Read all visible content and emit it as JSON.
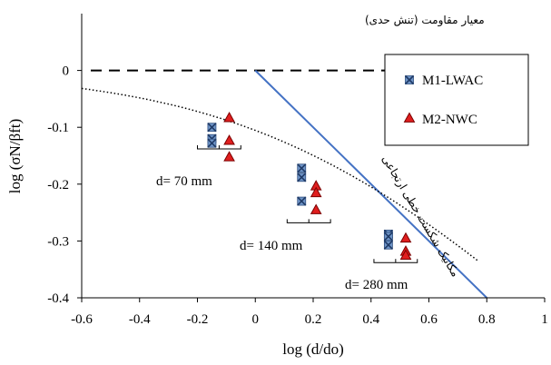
{
  "chart_data": {
    "type": "scatter",
    "xlabel": "log (d/do)",
    "ylabel": "log (σN/βft)",
    "xlim": [
      -0.6,
      1.0
    ],
    "ylim": [
      -0.4,
      0.1
    ],
    "xticks": [
      "-0.6",
      "-0.4",
      "-0.2",
      "0",
      "0.2",
      "0.4",
      "0.6",
      "0.8",
      "1"
    ],
    "yticks": [
      "0",
      "-0.1",
      "-0.2",
      "-0.3",
      "-0.4"
    ],
    "grid": false,
    "legend_position": "top-right",
    "series": [
      {
        "name": "M1-LWAC",
        "marker": "x-square",
        "color": "#3f6fa8",
        "points": [
          [
            -0.15,
            -0.1
          ],
          [
            -0.15,
            -0.12
          ],
          [
            -0.15,
            -0.128
          ],
          [
            0.16,
            -0.172
          ],
          [
            0.16,
            -0.188
          ],
          [
            0.16,
            -0.23
          ],
          [
            0.46,
            -0.288
          ],
          [
            0.46,
            -0.292
          ],
          [
            0.46,
            -0.307
          ]
        ]
      },
      {
        "name": "M2-NWC",
        "marker": "triangle",
        "color": "#e01e1e",
        "points": [
          [
            -0.09,
            -0.083
          ],
          [
            -0.09,
            -0.123
          ],
          [
            -0.09,
            -0.152
          ],
          [
            0.21,
            -0.203
          ],
          [
            0.21,
            -0.215
          ],
          [
            0.21,
            -0.245
          ],
          [
            0.52,
            -0.295
          ],
          [
            0.52,
            -0.318
          ],
          [
            0.52,
            -0.325
          ]
        ]
      }
    ],
    "reference_lines": [
      {
        "label": "معیار مقاومت (تنش حدی)",
        "style": "dashed",
        "color": "#000000",
        "x": [
          -0.6,
          0.8
        ],
        "y": [
          0.0,
          0.0
        ]
      },
      {
        "label": "مکانیک شکست خطی ارتجاعی",
        "style": "solid",
        "color": "#4472c4",
        "x": [
          0.0,
          0.8
        ],
        "y": [
          0.0,
          -0.4
        ]
      },
      {
        "label": "",
        "style": "dotted",
        "color": "#000000",
        "formula": "size-effect curve"
      }
    ],
    "annotations": [
      {
        "text": "d= 70 mm"
      },
      {
        "text": "d= 140 mm"
      },
      {
        "text": "d= 280 mm"
      }
    ]
  }
}
